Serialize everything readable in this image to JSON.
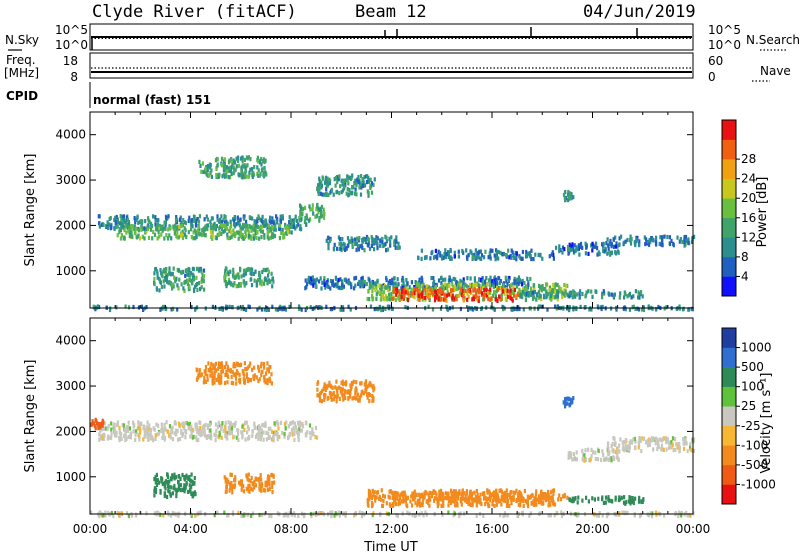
{
  "header": {
    "title": "Clyde River (fitACF)",
    "beam": "Beam 12",
    "date": "04/Jun/2019"
  },
  "status_panels": {
    "nsky_label": "N.Sky",
    "nsearch_label": "N.Search",
    "noise_ticks": [
      "10^5",
      "10^0"
    ],
    "freq_label_1": "Freq.",
    "freq_label_2": "[MHz]",
    "freq_ticks": [
      "18",
      "8"
    ],
    "nave_label": "Nave",
    "nave_ticks": [
      "60",
      "0"
    ],
    "cpid_label": "CPID",
    "cpid_value": "normal (fast) 151"
  },
  "chart_data": [
    {
      "type": "heatmap",
      "parameter": "power",
      "xlabel": "",
      "ylabel": "Slant Range [km]",
      "y_ticks": [
        "1000",
        "2000",
        "3000",
        "4000"
      ],
      "ylim": [
        180,
        4500
      ],
      "colorbar": {
        "label": "Power [dB]",
        "ticks": [
          "4",
          "8",
          "12",
          "16",
          "20",
          "24",
          "28"
        ],
        "range": [
          0,
          32
        ],
        "colors": [
          "#1010ff",
          "#1f5fbf",
          "#2b8f8f",
          "#3fa36a",
          "#6bbf3f",
          "#c8c81c",
          "#f0a010",
          "#f06010",
          "#e81010"
        ]
      },
      "features": [
        {
          "t0": 0.0,
          "t1": 24.0,
          "r0": 180,
          "r1": 260,
          "power_db": 8
        },
        {
          "t0": 0.3,
          "t1": 8.6,
          "r0": 1950,
          "r1": 2250,
          "power_db": 9
        },
        {
          "t0": 1.0,
          "t1": 8.0,
          "r0": 1750,
          "r1": 2050,
          "power_db": 14
        },
        {
          "t0": 4.3,
          "t1": 7.0,
          "r0": 3100,
          "r1": 3550,
          "power_db": 12
        },
        {
          "t0": 9.0,
          "t1": 11.3,
          "r0": 2700,
          "r1": 3150,
          "power_db": 10
        },
        {
          "t0": 8.2,
          "t1": 9.3,
          "r0": 2150,
          "r1": 2500,
          "power_db": 13
        },
        {
          "t0": 9.3,
          "t1": 12.3,
          "r0": 1500,
          "r1": 1800,
          "power_db": 8
        },
        {
          "t0": 2.5,
          "t1": 4.5,
          "r0": 600,
          "r1": 1100,
          "power_db": 11
        },
        {
          "t0": 5.3,
          "t1": 7.3,
          "r0": 700,
          "r1": 1100,
          "power_db": 12
        },
        {
          "t0": 8.5,
          "t1": 17.5,
          "r0": 650,
          "r1": 900,
          "power_db": 7
        },
        {
          "t0": 11.0,
          "t1": 19.0,
          "r0": 400,
          "r1": 750,
          "power_db": 16
        },
        {
          "t0": 12.0,
          "t1": 17.0,
          "r0": 380,
          "r1": 650,
          "power_db": 28
        },
        {
          "t0": 17.0,
          "t1": 22.0,
          "r0": 450,
          "r1": 600,
          "power_db": 10
        },
        {
          "t0": 13.0,
          "t1": 18.5,
          "r0": 1300,
          "r1": 1500,
          "power_db": 7
        },
        {
          "t0": 18.5,
          "t1": 21.0,
          "r0": 1400,
          "r1": 1650,
          "power_db": 7
        },
        {
          "t0": 20.5,
          "t1": 24.0,
          "r0": 1600,
          "r1": 1800,
          "power_db": 7
        },
        {
          "t0": 18.8,
          "t1": 19.2,
          "r0": 2600,
          "r1": 2800,
          "power_db": 10
        }
      ]
    },
    {
      "type": "heatmap",
      "parameter": "velocity",
      "xlabel": "Time UT",
      "ylabel": "Slant Range [km]",
      "x_ticks": [
        "00:00",
        "04:00",
        "08:00",
        "12:00",
        "16:00",
        "20:00",
        "00:00"
      ],
      "xlim_hours": [
        0,
        24
      ],
      "y_ticks": [
        "1000",
        "2000",
        "3000",
        "4000"
      ],
      "ylim": [
        180,
        4500
      ],
      "colorbar": {
        "label": "Velocity [m s⁻¹]",
        "ticks": [
          "1000",
          "500",
          "100",
          "25",
          "-25",
          "-100",
          "-500",
          "-1000"
        ],
        "colors": [
          "#1f3fa0",
          "#2f6fd0",
          "#2e8b57",
          "#5ec23a",
          "#c8c8c0",
          "#f7b733",
          "#f28a1e",
          "#ef5a14",
          "#e81010"
        ]
      },
      "features": [
        {
          "t0": 0.0,
          "t1": 24.0,
          "r0": 180,
          "r1": 260,
          "velocity": 0
        },
        {
          "t0": 0.3,
          "t1": 9.0,
          "r0": 1850,
          "r1": 2250,
          "velocity": 0
        },
        {
          "t0": 0.0,
          "t1": 0.5,
          "r0": 2100,
          "r1": 2300,
          "velocity": -700
        },
        {
          "t0": 4.2,
          "t1": 7.2,
          "r0": 3100,
          "r1": 3550,
          "velocity": -200
        },
        {
          "t0": 9.0,
          "t1": 11.3,
          "r0": 2700,
          "r1": 3150,
          "velocity": -300
        },
        {
          "t0": 2.5,
          "t1": 4.2,
          "r0": 600,
          "r1": 1100,
          "velocity": 150
        },
        {
          "t0": 5.3,
          "t1": 7.3,
          "r0": 700,
          "r1": 1100,
          "velocity": -200
        },
        {
          "t0": 11.0,
          "t1": 18.5,
          "r0": 400,
          "r1": 750,
          "velocity": -150
        },
        {
          "t0": 12.0,
          "t1": 17.0,
          "r0": 500,
          "r1": 700,
          "velocity": -400
        },
        {
          "t0": 17.0,
          "t1": 19.0,
          "r0": 500,
          "r1": 650,
          "velocity": -300
        },
        {
          "t0": 19.0,
          "t1": 22.0,
          "r0": 450,
          "r1": 600,
          "velocity": 150
        },
        {
          "t0": 20.5,
          "t1": 24.0,
          "r0": 1600,
          "r1": 1900,
          "velocity": 0
        },
        {
          "t0": 19.0,
          "t1": 21.0,
          "r0": 1400,
          "r1": 1650,
          "velocity": 0
        },
        {
          "t0": 18.8,
          "t1": 19.2,
          "r0": 2600,
          "r1": 2800,
          "velocity": 800
        }
      ]
    }
  ]
}
